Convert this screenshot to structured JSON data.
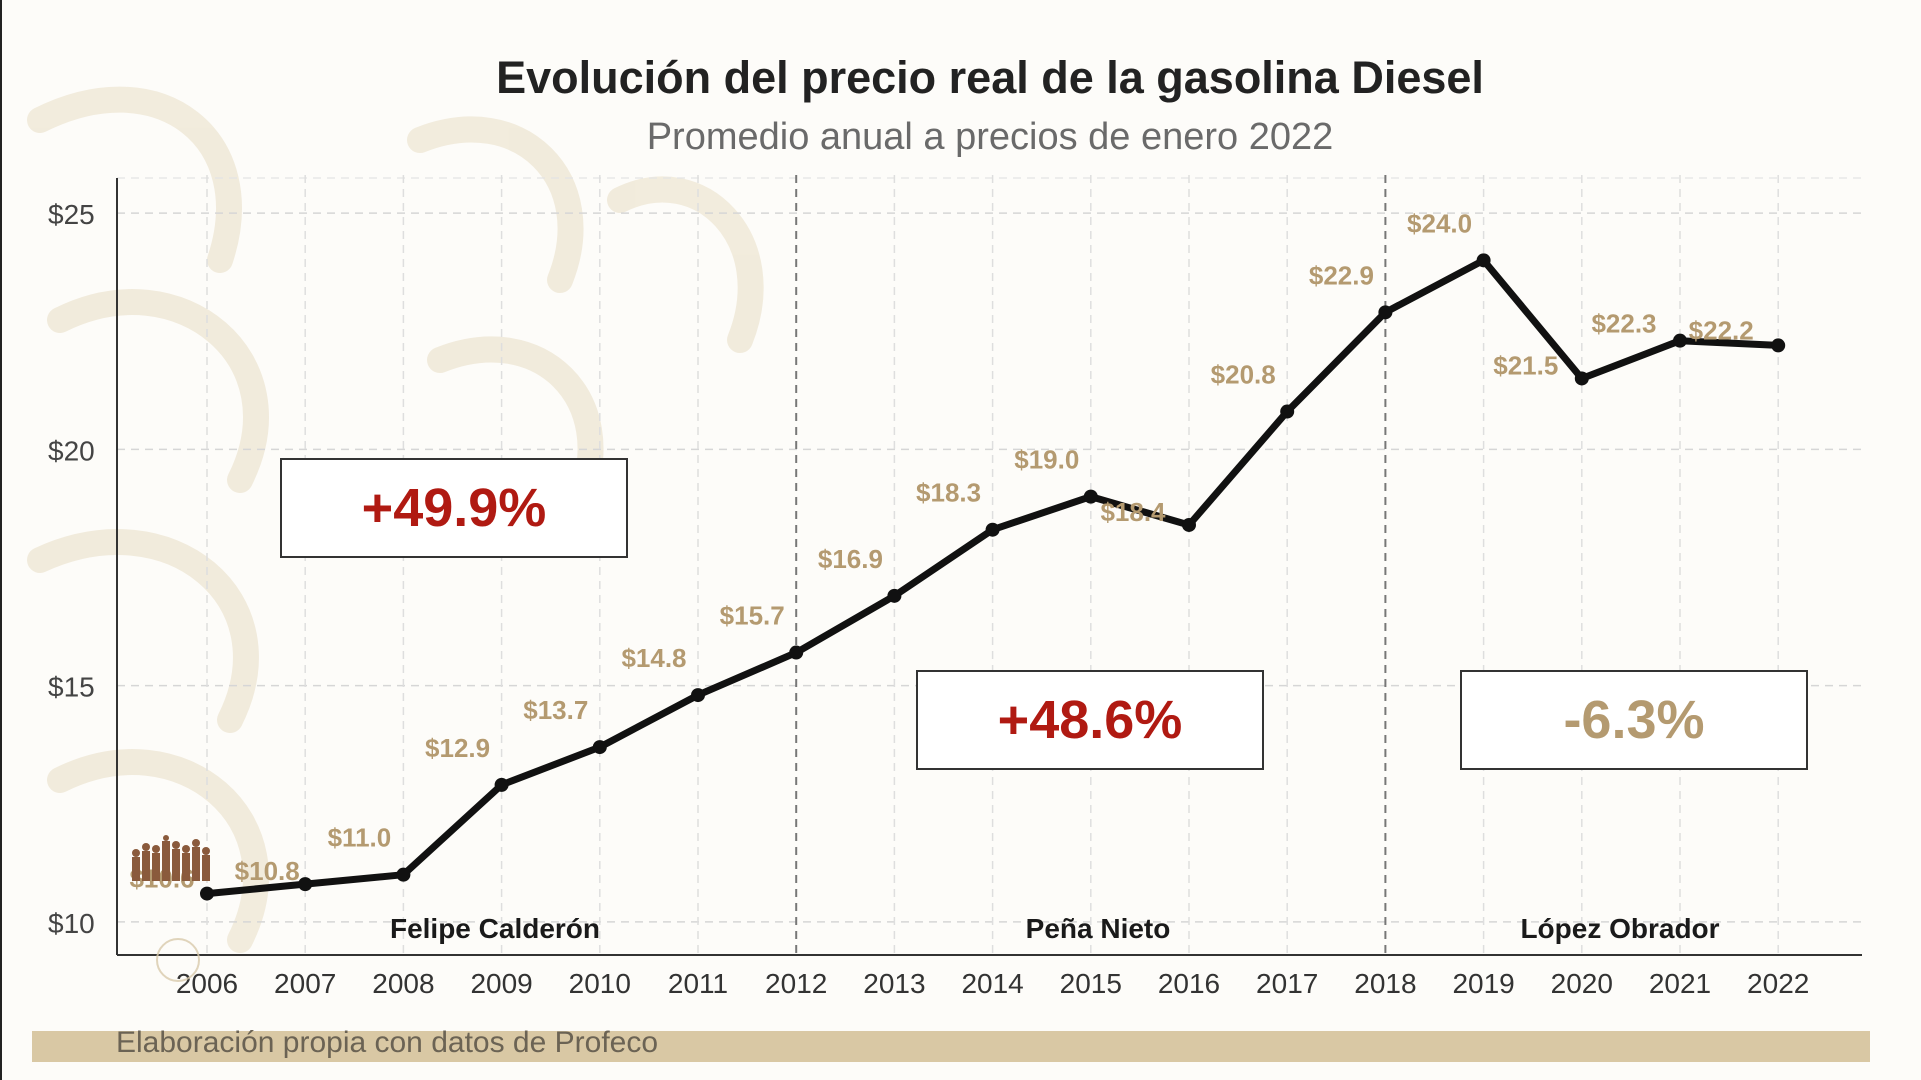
{
  "title": "Evolución del precio real de la gasolina Diesel",
  "subtitle": "Promedio anual a precios de enero 2022",
  "footer": "Elaboración propia con datos de Profeco",
  "colors": {
    "line": "#111111",
    "label": "#b49a70",
    "red": "#b01a12",
    "gold": "#b49a70",
    "footer_bar": "#d9c8a4"
  },
  "chart_data": {
    "type": "line",
    "x": [
      "2006",
      "2007",
      "2008",
      "2009",
      "2010",
      "2011",
      "2012",
      "2013",
      "2014",
      "2015",
      "2016",
      "2017",
      "2018",
      "2019",
      "2020",
      "2021",
      "2022"
    ],
    "series": [
      {
        "values": [
          10.6,
          10.8,
          11.0,
          12.9,
          13.7,
          14.8,
          15.7,
          16.9,
          18.3,
          19.0,
          18.4,
          20.8,
          22.9,
          24.0,
          21.5,
          22.3,
          22.2
        ]
      }
    ],
    "data_labels": [
      "$10.6",
      "$10.8",
      "$11.0",
      "$12.9",
      "$13.7",
      "$14.8",
      "$15.7",
      "$16.9",
      "$18.3",
      "$19.0",
      "$18.4",
      "$20.8",
      "$22.9",
      "$24.0",
      "$21.5",
      "$22.3",
      "$22.2"
    ],
    "y_ticks": [
      {
        "value": 10,
        "label": "$10"
      },
      {
        "value": 15,
        "label": "$15"
      },
      {
        "value": 20,
        "label": "$20"
      },
      {
        "value": 25,
        "label": "$25"
      }
    ],
    "ylim": [
      9.3,
      25.7
    ],
    "grid": true,
    "period_dividers": [
      "2012",
      "2018"
    ],
    "periods": [
      {
        "president": "Felipe Calderón",
        "change": "+49.9%",
        "tone": "red"
      },
      {
        "president": "Peña Nieto",
        "change": "+48.6%",
        "tone": "red"
      },
      {
        "president": "López Obrador",
        "change": "-6.3%",
        "tone": "gold"
      }
    ]
  }
}
